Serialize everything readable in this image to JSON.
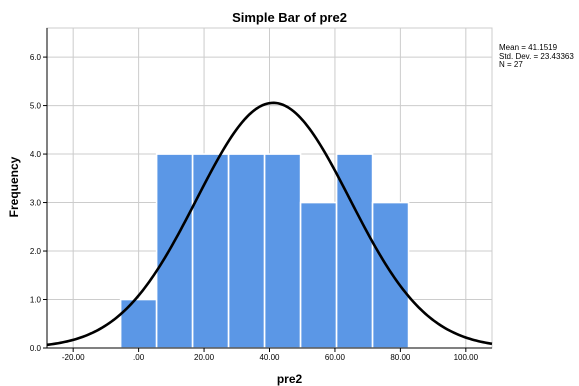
{
  "chart_data": {
    "type": "bar",
    "title": "Simple Bar of pre2",
    "xlabel": "pre2",
    "ylabel": "Frequency",
    "stats": [
      "Mean = 41.1519",
      "Std. Dev. = 23.43363",
      "N = 27"
    ],
    "x_ticks": [
      {
        "value": -20,
        "label": "-20.00"
      },
      {
        "value": 0,
        "label": ".00"
      },
      {
        "value": 20,
        "label": "20.00"
      },
      {
        "value": 40,
        "label": "40.00"
      },
      {
        "value": 60,
        "label": "60.00"
      },
      {
        "value": 80,
        "label": "80.00"
      },
      {
        "value": 100,
        "label": "100.00"
      }
    ],
    "y_ticks": [
      {
        "value": 0,
        "label": "0.0"
      },
      {
        "value": 1,
        "label": "1.0"
      },
      {
        "value": 2,
        "label": "2.0"
      },
      {
        "value": 3,
        "label": "3.0"
      },
      {
        "value": 4,
        "label": "4.0"
      },
      {
        "value": 5,
        "label": "5.0"
      },
      {
        "value": 6,
        "label": "6.0"
      }
    ],
    "xlim": [
      -28,
      108
    ],
    "ylim": [
      0,
      6.6
    ],
    "bins": [
      {
        "x0": -5.5,
        "x1": 5.5,
        "value": 1
      },
      {
        "x0": 5.5,
        "x1": 16.5,
        "value": 4
      },
      {
        "x0": 16.5,
        "x1": 27.5,
        "value": 4
      },
      {
        "x0": 27.5,
        "x1": 38.5,
        "value": 4
      },
      {
        "x0": 38.5,
        "x1": 49.5,
        "value": 4
      },
      {
        "x0": 49.5,
        "x1": 60.5,
        "value": 3
      },
      {
        "x0": 60.5,
        "x1": 71.5,
        "value": 4
      },
      {
        "x0": 71.5,
        "x1": 82.5,
        "value": 3
      }
    ],
    "normal_curve": {
      "mean": 41.1519,
      "sd": 23.43363,
      "n": 27
    },
    "grid": true,
    "colors": {
      "bar": "#5b97e6",
      "bar_edge": "#ffffff",
      "grid": "#cccccc",
      "curve": "#000000",
      "axis": "#000000"
    }
  }
}
